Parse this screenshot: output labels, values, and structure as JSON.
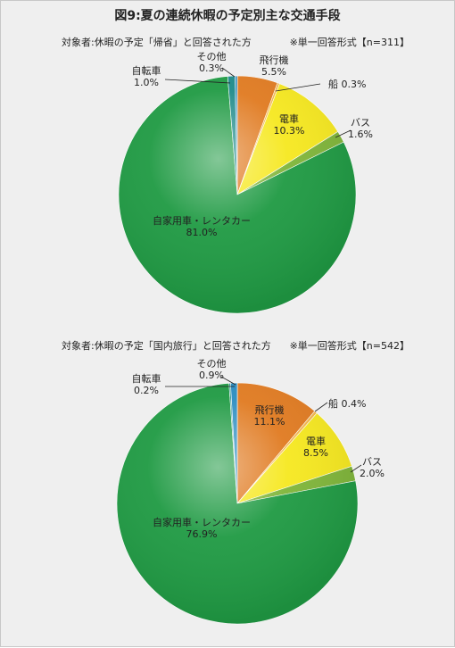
{
  "title": "図9:夏の連続休暇の予定別主な交通手段",
  "colors": {
    "car": "#1f9a43",
    "plane": "#e07a20",
    "ship": "#f4b64a",
    "train": "#f6e81f",
    "bus": "#7fb539",
    "bicycle": "#1d8a8a",
    "other": "#2a8cc0"
  },
  "chart_data": [
    {
      "type": "pie",
      "subtitle": "対象者:休暇の予定「帰省」と回答された方",
      "note": "※単一回答形式【n=311】",
      "slices": [
        {
          "name": "飛行機",
          "label": "5.5%",
          "value": 5.5,
          "color_key": "plane"
        },
        {
          "name": "船",
          "label": "0.3%",
          "value": 0.3,
          "color_key": "ship"
        },
        {
          "name": "電車",
          "label": "10.3%",
          "value": 10.3,
          "color_key": "train"
        },
        {
          "name": "バス",
          "label": "1.6%",
          "value": 1.6,
          "color_key": "bus"
        },
        {
          "name": "自家用車・レンタカー",
          "label": "81.0%",
          "value": 81.0,
          "color_key": "car"
        },
        {
          "name": "自転車",
          "label": "1.0%",
          "value": 1.0,
          "color_key": "bicycle"
        },
        {
          "name": "その他",
          "label": "0.3%",
          "value": 0.3,
          "color_key": "other"
        }
      ]
    },
    {
      "type": "pie",
      "subtitle": "対象者:休暇の予定「国内旅行」と回答された方",
      "note": "※単一回答形式【n=542】",
      "slices": [
        {
          "name": "飛行機",
          "label": "11.1%",
          "value": 11.1,
          "color_key": "plane"
        },
        {
          "name": "船",
          "label": "0.4%",
          "value": 0.4,
          "color_key": "ship"
        },
        {
          "name": "電車",
          "label": "8.5%",
          "value": 8.5,
          "color_key": "train"
        },
        {
          "name": "バス",
          "label": "2.0%",
          "value": 2.0,
          "color_key": "bus"
        },
        {
          "name": "自家用車・レンタカー",
          "label": "76.9%",
          "value": 76.9,
          "color_key": "car"
        },
        {
          "name": "自転車",
          "label": "0.2%",
          "value": 0.2,
          "color_key": "bicycle"
        },
        {
          "name": "その他",
          "label": "0.9%",
          "value": 0.9,
          "color_key": "other"
        }
      ]
    }
  ]
}
